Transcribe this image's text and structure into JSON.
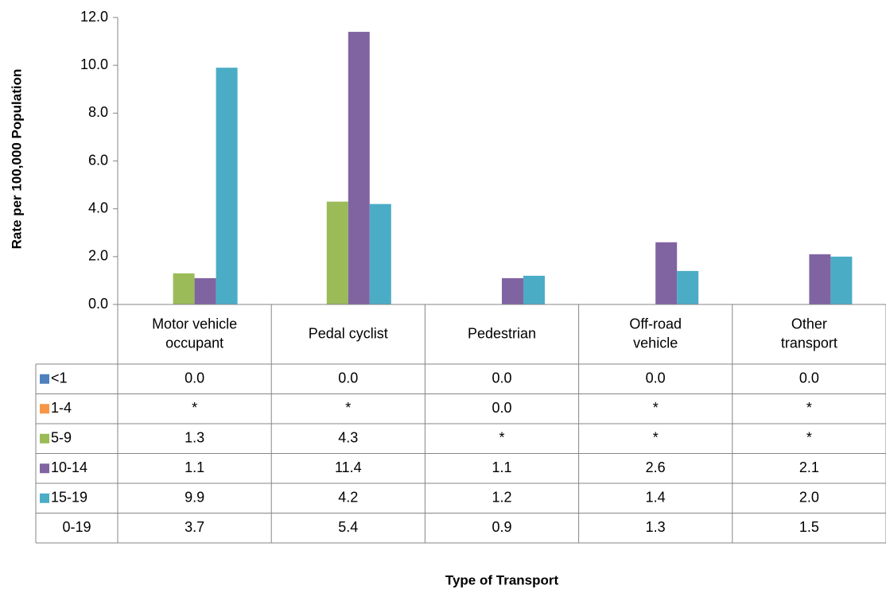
{
  "chart_data": {
    "type": "bar",
    "y_label": "Rate per 100,000 Population",
    "x_label": "Type of Transport",
    "categories": [
      [
        "Motor vehicle",
        "occupant"
      ],
      [
        "Pedal cyclist"
      ],
      [
        "Pedestrian"
      ],
      [
        "Off-road",
        "vehicle"
      ],
      [
        "Other",
        "transport"
      ]
    ],
    "series": [
      {
        "name": "<1",
        "color": "#4f81bd",
        "values": [
          0,
          0,
          0,
          0,
          0
        ],
        "value_labels": [
          "0.0",
          "0.0",
          "0.0",
          "0.0",
          "0.0"
        ]
      },
      {
        "name": "1-4",
        "color": "#f79646",
        "values": [
          null,
          null,
          0,
          null,
          null
        ],
        "value_labels": [
          "*",
          "*",
          "0.0",
          "*",
          "*"
        ]
      },
      {
        "name": "5-9",
        "color": "#9bbb59",
        "values": [
          1.3,
          4.3,
          null,
          null,
          null
        ],
        "value_labels": [
          "1.3",
          "4.3",
          "*",
          "*",
          "*"
        ]
      },
      {
        "name": "10-14",
        "color": "#8064a2",
        "values": [
          1.1,
          11.4,
          1.1,
          2.6,
          2.1
        ]
      },
      {
        "name": "15-19",
        "color": "#4bacc6",
        "values": [
          9.9,
          4.2,
          1.2,
          1.4,
          2.0
        ],
        "value_labels": [
          "9.9",
          "4.2",
          "1.2",
          "1.4",
          "2.0"
        ]
      },
      {
        "name": "0-19",
        "values": [
          3.7,
          5.4,
          0.9,
          1.3,
          1.5
        ]
      }
    ],
    "ylim": [
      0,
      12
    ],
    "yticks": [
      {
        "value": 0,
        "label": "0.0"
      },
      {
        "value": 2,
        "label": "2.0"
      },
      {
        "value": 4,
        "label": "4.0"
      },
      {
        "value": 6,
        "label": "6.0"
      },
      {
        "value": 8,
        "label": "8.0"
      },
      {
        "value": 10,
        "label": "10.0"
      },
      {
        "value": 12,
        "label": "12.0"
      }
    ]
  }
}
